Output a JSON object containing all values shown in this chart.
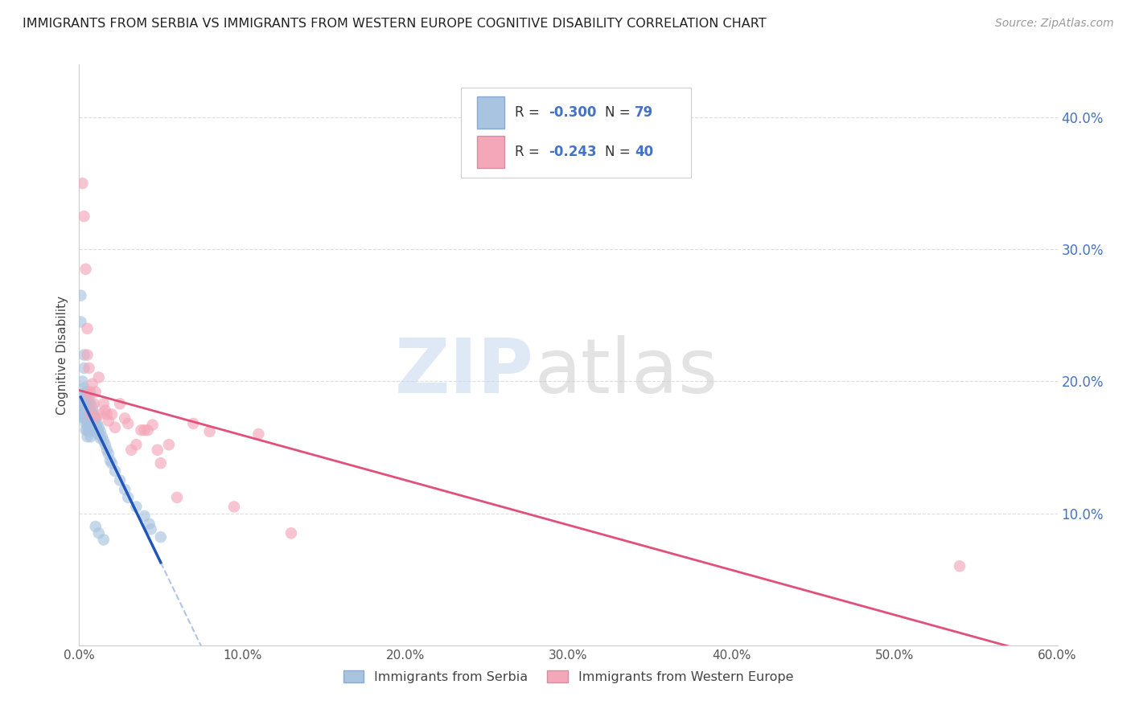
{
  "title": "IMMIGRANTS FROM SERBIA VS IMMIGRANTS FROM WESTERN EUROPE COGNITIVE DISABILITY CORRELATION CHART",
  "source": "Source: ZipAtlas.com",
  "ylabel": "Cognitive Disability",
  "legend_label1": "Immigrants from Serbia",
  "legend_label2": "Immigrants from Western Europe",
  "serbia_color": "#a8c4e0",
  "western_color": "#f4a7b9",
  "serbia_line_color": "#2255bb",
  "western_line_color": "#e0507a",
  "xlim": [
    0.0,
    0.6
  ],
  "ylim": [
    0.0,
    0.44
  ],
  "serbia_x": [
    0.001,
    0.001,
    0.001,
    0.002,
    0.002,
    0.002,
    0.002,
    0.002,
    0.002,
    0.003,
    0.003,
    0.003,
    0.003,
    0.003,
    0.003,
    0.004,
    0.004,
    0.004,
    0.004,
    0.004,
    0.004,
    0.004,
    0.005,
    0.005,
    0.005,
    0.005,
    0.005,
    0.005,
    0.005,
    0.005,
    0.006,
    0.006,
    0.006,
    0.006,
    0.006,
    0.006,
    0.007,
    0.007,
    0.007,
    0.007,
    0.007,
    0.007,
    0.008,
    0.008,
    0.008,
    0.008,
    0.009,
    0.009,
    0.009,
    0.01,
    0.01,
    0.01,
    0.011,
    0.011,
    0.012,
    0.012,
    0.013,
    0.013,
    0.014,
    0.015,
    0.016,
    0.017,
    0.018,
    0.019,
    0.02,
    0.022,
    0.025,
    0.028,
    0.03,
    0.035,
    0.04,
    0.043,
    0.044,
    0.05,
    0.01,
    0.012,
    0.015
  ],
  "serbia_y": [
    0.265,
    0.245,
    0.19,
    0.2,
    0.185,
    0.178,
    0.173,
    0.182,
    0.175,
    0.22,
    0.21,
    0.195,
    0.188,
    0.178,
    0.172,
    0.192,
    0.187,
    0.182,
    0.177,
    0.172,
    0.168,
    0.163,
    0.192,
    0.188,
    0.183,
    0.178,
    0.173,
    0.168,
    0.163,
    0.158,
    0.188,
    0.183,
    0.178,
    0.173,
    0.168,
    0.162,
    0.183,
    0.178,
    0.173,
    0.168,
    0.163,
    0.158,
    0.18,
    0.175,
    0.17,
    0.165,
    0.175,
    0.17,
    0.165,
    0.172,
    0.167,
    0.162,
    0.168,
    0.163,
    0.165,
    0.16,
    0.162,
    0.157,
    0.158,
    0.155,
    0.152,
    0.148,
    0.145,
    0.14,
    0.138,
    0.132,
    0.125,
    0.118,
    0.112,
    0.105,
    0.098,
    0.092,
    0.088,
    0.082,
    0.09,
    0.085,
    0.08
  ],
  "western_x": [
    0.002,
    0.003,
    0.004,
    0.005,
    0.005,
    0.006,
    0.006,
    0.007,
    0.007,
    0.008,
    0.009,
    0.01,
    0.01,
    0.012,
    0.013,
    0.015,
    0.016,
    0.017,
    0.018,
    0.02,
    0.022,
    0.025,
    0.028,
    0.03,
    0.032,
    0.035,
    0.038,
    0.04,
    0.042,
    0.045,
    0.048,
    0.05,
    0.055,
    0.06,
    0.07,
    0.08,
    0.095,
    0.11,
    0.13,
    0.54
  ],
  "western_y": [
    0.35,
    0.325,
    0.285,
    0.24,
    0.22,
    0.21,
    0.19,
    0.192,
    0.175,
    0.198,
    0.183,
    0.192,
    0.173,
    0.203,
    0.175,
    0.183,
    0.178,
    0.175,
    0.17,
    0.175,
    0.165,
    0.183,
    0.172,
    0.168,
    0.148,
    0.152,
    0.163,
    0.163,
    0.163,
    0.167,
    0.148,
    0.138,
    0.152,
    0.112,
    0.168,
    0.162,
    0.105,
    0.16,
    0.085,
    0.06
  ],
  "background_color": "#ffffff",
  "grid_color": "#dddddd"
}
